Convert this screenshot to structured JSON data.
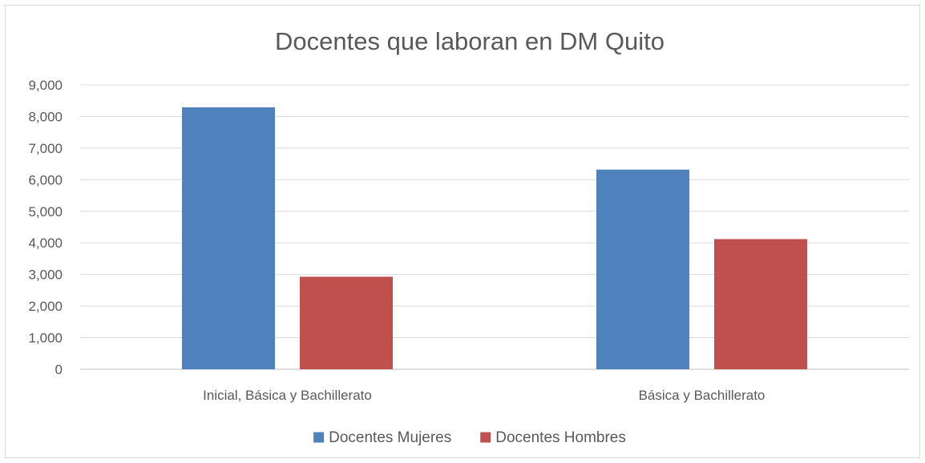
{
  "chart_data": {
    "type": "bar",
    "title": "Docentes que laboran en DM Quito",
    "categories": [
      "Inicial, Básica y Bachillerato",
      "Básica y Bachillerato"
    ],
    "series": [
      {
        "name": "Docentes Mujeres",
        "color": "#4f81bd",
        "values": [
          8290,
          6320
        ]
      },
      {
        "name": "Docentes Hombres",
        "color": "#c0504d",
        "values": [
          2930,
          4120
        ]
      }
    ],
    "ylim": [
      0,
      9000
    ],
    "yticks": [
      0,
      1000,
      2000,
      3000,
      4000,
      5000,
      6000,
      7000,
      8000,
      9000
    ],
    "ytick_labels": [
      "0",
      "1,000",
      "2,000",
      "3,000",
      "4,000",
      "5,000",
      "6,000",
      "7,000",
      "8,000",
      "9,000"
    ],
    "xlabel": "",
    "ylabel": "",
    "grid": true,
    "legend_position": "bottom",
    "gridline_color": "#d9d9d9",
    "axis_line_color": "#bfbfbf"
  }
}
